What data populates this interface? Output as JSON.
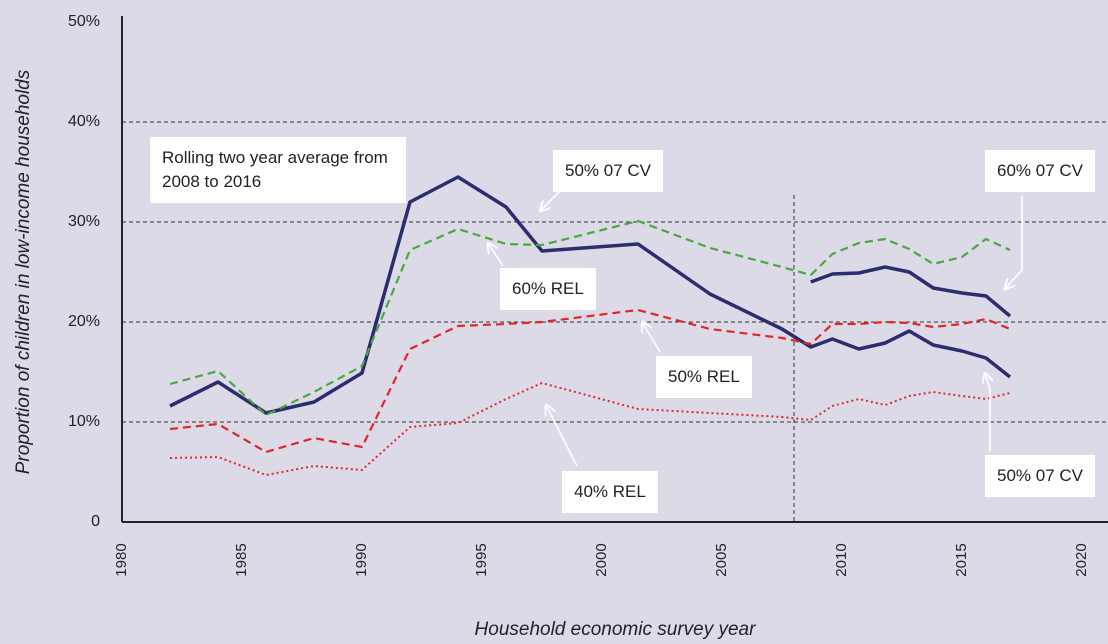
{
  "chart_data": {
    "type": "line",
    "x_label": "Household economic survey year",
    "y_label": "Proportion of children in low-income households",
    "annotation": "Rolling two year average from 2008 to 2016",
    "x": [
      1982,
      1984,
      1986,
      1988,
      1990,
      1992,
      1994,
      1996,
      1997.5,
      2001.5,
      2004.5,
      2007.5,
      2008.7,
      2009.6,
      2010.7,
      2011.8,
      2012.8,
      2013.8,
      2015,
      2016,
      2017
    ],
    "series": [
      {
        "name": "50% 07 CV",
        "color": "#2b2d6e",
        "dash": "solid",
        "values": [
          11.6,
          14.0,
          10.9,
          12.0,
          14.9,
          32.0,
          34.5,
          31.5,
          27.1,
          27.8,
          22.8,
          19.3,
          17.5,
          18.3,
          17.3,
          17.9,
          19.1,
          17.7,
          17.1,
          16.4,
          14.5
        ]
      },
      {
        "name": "60% 07 CV",
        "color": "#2b2d6e",
        "dash": "solid",
        "values": [
          null,
          null,
          null,
          null,
          null,
          null,
          null,
          null,
          null,
          null,
          null,
          null,
          24.0,
          24.8,
          24.9,
          25.5,
          25.0,
          23.4,
          22.9,
          22.6,
          20.6
        ]
      },
      {
        "name": "60% REL",
        "color": "#4aa83f",
        "dash": "dashed",
        "values": [
          13.8,
          15.1,
          10.7,
          13.0,
          15.6,
          27.2,
          29.3,
          27.8,
          27.7,
          30.1,
          27.4,
          25.5,
          24.7,
          26.8,
          27.9,
          28.3,
          27.3,
          25.8,
          26.5,
          28.3,
          27.2
        ]
      },
      {
        "name": "50% REL",
        "color": "#e0262b",
        "dash": "dashed",
        "values": [
          9.3,
          9.8,
          7.0,
          8.4,
          7.5,
          17.3,
          19.6,
          19.8,
          20.0,
          21.2,
          19.3,
          18.4,
          17.8,
          19.8,
          19.8,
          20.0,
          19.9,
          19.5,
          19.8,
          20.3,
          19.3
        ]
      },
      {
        "name": "40% REL",
        "color": "#e0262b",
        "dash": "dotted",
        "values": [
          6.4,
          6.5,
          4.7,
          5.6,
          5.2,
          9.5,
          9.9,
          12.3,
          13.9,
          11.3,
          10.9,
          10.5,
          10.2,
          11.6,
          12.3,
          11.7,
          12.6,
          13.0,
          12.6,
          12.3,
          12.9
        ]
      }
    ],
    "xlim": [
      1980,
      2021
    ],
    "xticks": [
      1980,
      1985,
      1990,
      1995,
      2000,
      2005,
      2010,
      2015,
      2020
    ],
    "ylim": [
      0,
      50
    ],
    "yticks": [
      0,
      {
        "value": 10,
        "label": "10%"
      },
      {
        "value": 20,
        "label": "20%"
      },
      {
        "value": 30,
        "label": "30%"
      },
      {
        "value": 40,
        "label": "40%"
      },
      {
        "value": 50,
        "label": "50%"
      }
    ],
    "grid": true,
    "divider_x": 2008
  }
}
